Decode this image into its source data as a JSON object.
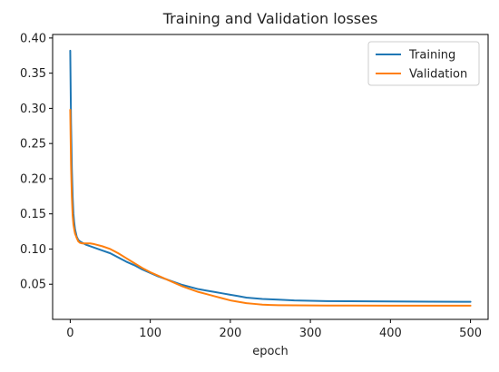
{
  "chart_data": {
    "type": "line",
    "title": "Training and Validation losses",
    "xlabel": "epoch",
    "ylabel": "",
    "xlim": [
      -22,
      522
    ],
    "ylim": [
      0.0,
      0.405
    ],
    "xticks": [
      0,
      100,
      200,
      300,
      400,
      500
    ],
    "yticks": [
      0.05,
      0.1,
      0.15,
      0.2,
      0.25,
      0.3,
      0.35,
      0.4
    ],
    "ytick_labels": [
      "0.05",
      "0.10",
      "0.15",
      "0.20",
      "0.25",
      "0.30",
      "0.35",
      "0.40"
    ],
    "xtick_labels": [
      "0",
      "100",
      "200",
      "300",
      "400",
      "500"
    ],
    "grid": false,
    "legend_position": "top-right",
    "series": [
      {
        "name": "Training",
        "color": "#1f77b4",
        "x": [
          0,
          1,
          2,
          3,
          4,
          5,
          6,
          8,
          10,
          12,
          15,
          20,
          30,
          40,
          50,
          60,
          70,
          80,
          90,
          100,
          110,
          120,
          130,
          140,
          150,
          160,
          170,
          180,
          190,
          200,
          210,
          220,
          230,
          240,
          250,
          260,
          280,
          300,
          320,
          350,
          400,
          450,
          500
        ],
        "y": [
          0.382,
          0.28,
          0.215,
          0.175,
          0.15,
          0.137,
          0.128,
          0.118,
          0.113,
          0.111,
          0.109,
          0.106,
          0.102,
          0.098,
          0.094,
          0.088,
          0.082,
          0.077,
          0.071,
          0.066,
          0.061,
          0.057,
          0.053,
          0.049,
          0.046,
          0.043,
          0.041,
          0.039,
          0.037,
          0.035,
          0.033,
          0.031,
          0.03,
          0.029,
          0.0285,
          0.028,
          0.027,
          0.0265,
          0.026,
          0.0258,
          0.0255,
          0.0252,
          0.025
        ]
      },
      {
        "name": "Validation",
        "color": "#ff7f0e",
        "x": [
          0,
          1,
          2,
          3,
          4,
          5,
          6,
          8,
          10,
          12,
          15,
          20,
          25,
          30,
          40,
          50,
          60,
          70,
          80,
          90,
          100,
          110,
          120,
          130,
          140,
          150,
          160,
          170,
          180,
          190,
          200,
          210,
          220,
          230,
          240,
          250,
          260,
          280,
          300,
          320,
          350,
          400,
          450,
          500
        ],
        "y": [
          0.298,
          0.22,
          0.175,
          0.148,
          0.135,
          0.128,
          0.122,
          0.116,
          0.111,
          0.109,
          0.108,
          0.108,
          0.108,
          0.107,
          0.104,
          0.1,
          0.094,
          0.087,
          0.08,
          0.073,
          0.067,
          0.062,
          0.057,
          0.052,
          0.047,
          0.043,
          0.039,
          0.036,
          0.033,
          0.03,
          0.027,
          0.025,
          0.023,
          0.022,
          0.021,
          0.0205,
          0.0202,
          0.02,
          0.0198,
          0.0197,
          0.0196,
          0.0195,
          0.0195,
          0.0195
        ]
      }
    ]
  }
}
